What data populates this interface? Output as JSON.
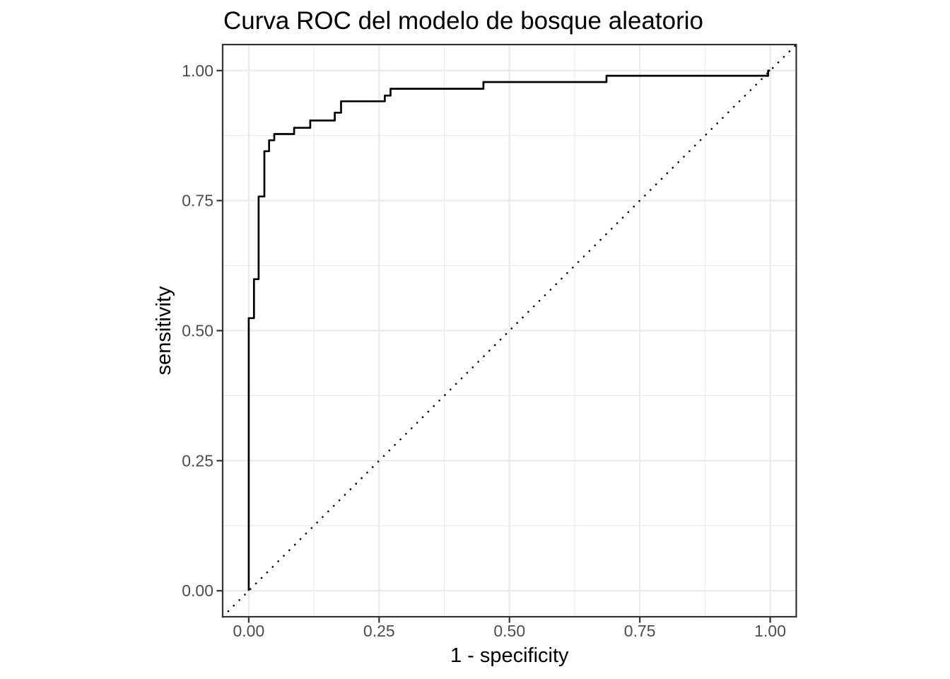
{
  "chart_data": {
    "type": "line",
    "subtype": "roc-step-curve",
    "title": "Curva ROC del modelo de bosque aleatorio",
    "xlabel": "1 - specificity",
    "ylabel": "sensitivity",
    "xlim": [
      -0.05,
      1.05
    ],
    "ylim": [
      -0.05,
      1.05
    ],
    "grid": true,
    "legend_position": "none",
    "x_ticks": {
      "values": [
        0,
        0.25,
        0.5,
        0.75,
        1
      ],
      "labels": [
        "0.00",
        "0.25",
        "0.50",
        "0.75",
        "1.00"
      ]
    },
    "y_ticks": {
      "values": [
        0,
        0.25,
        0.5,
        0.75,
        1
      ],
      "labels": [
        "0.00",
        "0.25",
        "0.50",
        "0.75",
        "1.00"
      ]
    },
    "x_minor": [
      0.125,
      0.375,
      0.625,
      0.875
    ],
    "y_minor": [
      0.125,
      0.375,
      0.625,
      0.875
    ],
    "series": [
      {
        "name": "reference-diagonal",
        "style": "dotted",
        "color": "#000000",
        "points": [
          [
            -0.05,
            -0.05
          ],
          [
            1.05,
            1.05
          ]
        ]
      },
      {
        "name": "roc-curve",
        "style": "step",
        "color": "#000000",
        "points": [
          [
            0.0,
            0.0
          ],
          [
            0.0,
            0.524
          ],
          [
            0.01,
            0.524
          ],
          [
            0.01,
            0.599
          ],
          [
            0.019,
            0.599
          ],
          [
            0.019,
            0.758
          ],
          [
            0.03,
            0.758
          ],
          [
            0.03,
            0.845
          ],
          [
            0.039,
            0.845
          ],
          [
            0.039,
            0.866
          ],
          [
            0.049,
            0.866
          ],
          [
            0.049,
            0.878
          ],
          [
            0.087,
            0.878
          ],
          [
            0.087,
            0.89
          ],
          [
            0.118,
            0.89
          ],
          [
            0.118,
            0.904
          ],
          [
            0.165,
            0.904
          ],
          [
            0.165,
            0.919
          ],
          [
            0.177,
            0.919
          ],
          [
            0.177,
            0.941
          ],
          [
            0.261,
            0.941
          ],
          [
            0.261,
            0.952
          ],
          [
            0.272,
            0.952
          ],
          [
            0.272,
            0.965
          ],
          [
            0.45,
            0.965
          ],
          [
            0.45,
            0.978
          ],
          [
            0.686,
            0.978
          ],
          [
            0.686,
            0.99
          ],
          [
            0.996,
            0.99
          ],
          [
            0.996,
            1.0
          ],
          [
            1.0,
            1.0
          ]
        ]
      }
    ],
    "colors": {
      "background": "#ffffff",
      "panel_background": "#ffffff",
      "grid_major": "#ebebeb",
      "grid_minor": "#ebebeb",
      "panel_border": "#333333",
      "tick_mark": "#333333",
      "tick_label": "#4d4d4d",
      "title": "#000000",
      "axis_title": "#000000"
    }
  }
}
